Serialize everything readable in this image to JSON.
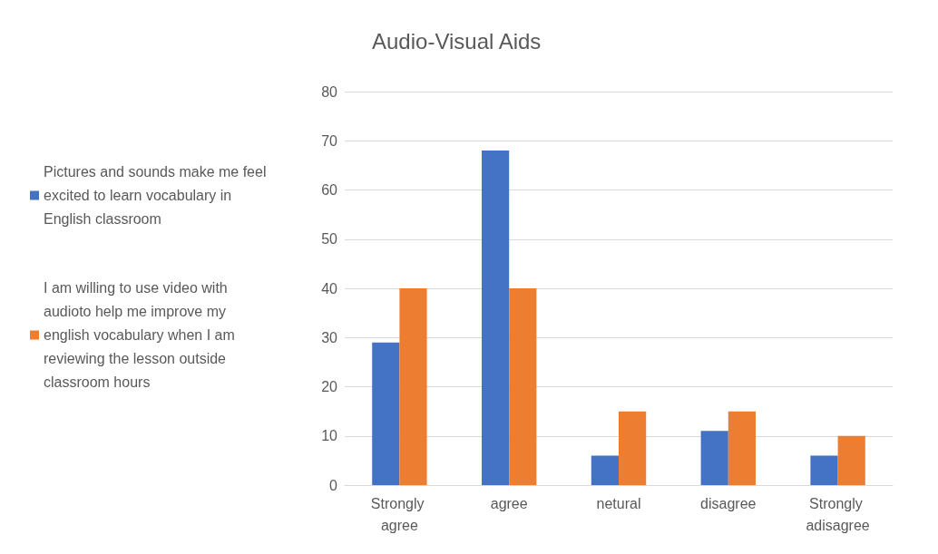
{
  "chart_data": {
    "type": "bar",
    "title": "Audio-Visual Aids",
    "categories": [
      "Strongly agree",
      "agree",
      "netural",
      "disagree",
      "Strongly adisagree"
    ],
    "series": [
      {
        "name": "Pictures and sounds make me feel excited to learn vocabulary in English classroom",
        "color": "#4472c4",
        "values": [
          29,
          68,
          6,
          11,
          6
        ]
      },
      {
        "name": "I am willing to use video with audioto help me improve my english vocabulary when I am reviewing the lesson outside classroom hours",
        "color": "#ed7d31",
        "values": [
          40,
          40,
          15,
          15,
          10
        ]
      }
    ],
    "ylim": [
      0,
      80
    ],
    "yticks": [
      0,
      10,
      20,
      30,
      40,
      50,
      60,
      70,
      80
    ],
    "grid": "y",
    "legend": "left"
  }
}
